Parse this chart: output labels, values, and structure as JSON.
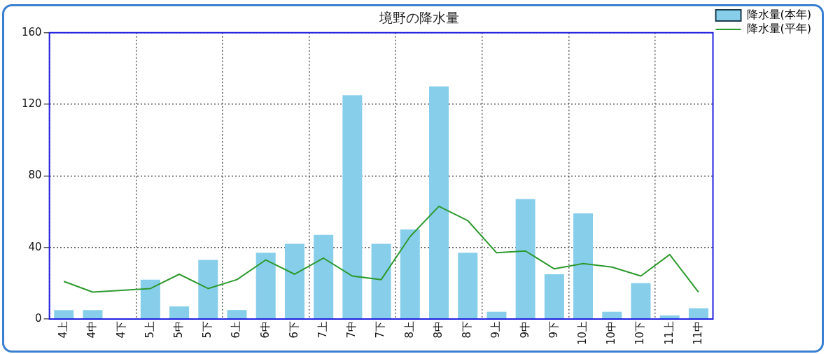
{
  "chart_data": {
    "type": "bar",
    "title": "境野の降水量",
    "categories": [
      "4上",
      "4中",
      "4下",
      "5上",
      "5中",
      "5下",
      "6上",
      "6中",
      "6下",
      "7上",
      "7中",
      "7下",
      "8上",
      "8中",
      "8下",
      "9上",
      "9中",
      "9下",
      "10上",
      "10中",
      "10下",
      "11上",
      "11中"
    ],
    "series": [
      {
        "name": "降水量(本年)",
        "color": "#87ceeb",
        "values": [
          5,
          5,
          0,
          22,
          7,
          33,
          5,
          37,
          42,
          47,
          125,
          42,
          50,
          130,
          37,
          4,
          67,
          25,
          59,
          4,
          20,
          2,
          6
        ]
      },
      {
        "name": "降水量(平年)",
        "type": "line",
        "color": "#2e9a2e",
        "values": [
          21,
          15,
          16,
          17,
          25,
          17,
          22,
          33,
          25,
          34,
          24,
          22,
          46,
          63,
          55,
          37,
          38,
          28,
          31,
          29,
          24,
          36,
          15
        ]
      }
    ],
    "ylim": [
      0,
      160
    ],
    "yticks": [
      0,
      40,
      80,
      120,
      160
    ],
    "grid": true,
    "legend": "right",
    "marker": "none",
    "line_style": "solid"
  }
}
